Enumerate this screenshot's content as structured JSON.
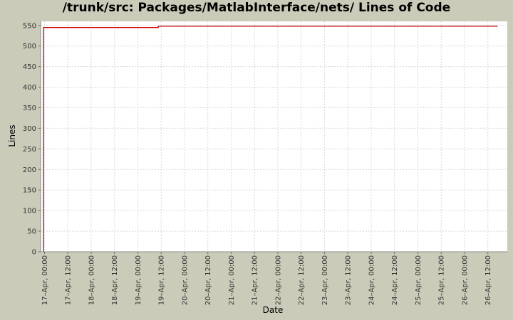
{
  "chart_data": {
    "type": "line",
    "title": "/trunk/src: Packages/MatlabInterface/nets/ Lines of Code",
    "xlabel": "Date",
    "ylabel": "Lines",
    "ylim": [
      0,
      560
    ],
    "yticks": [
      0,
      50,
      100,
      150,
      200,
      250,
      300,
      350,
      400,
      450,
      500,
      550
    ],
    "xlim_hours": [
      -4,
      476
    ],
    "xticks": [
      {
        "h": 0,
        "label": "17–Apr, 00:00"
      },
      {
        "h": 24,
        "label": "17–Apr, 12:00"
      },
      {
        "h": 48,
        "label": "18–Apr, 00:00"
      },
      {
        "h": 72,
        "label": "18–Apr, 12:00"
      },
      {
        "h": 96,
        "label": "19–Apr, 00:00"
      },
      {
        "h": 120,
        "label": "19–Apr, 12:00"
      },
      {
        "h": 144,
        "label": "20–Apr, 00:00"
      },
      {
        "h": 168,
        "label": "20–Apr, 12:00"
      },
      {
        "h": 192,
        "label": "21–Apr, 00:00"
      },
      {
        "h": 216,
        "label": "21–Apr, 12:00"
      },
      {
        "h": 240,
        "label": "22–Apr, 00:00"
      },
      {
        "h": 264,
        "label": "22–Apr, 12:00"
      },
      {
        "h": 288,
        "label": "23–Apr, 00:00"
      },
      {
        "h": 312,
        "label": "23–Apr, 12:00"
      },
      {
        "h": 336,
        "label": "24–Apr, 00:00"
      },
      {
        "h": 360,
        "label": "24–Apr, 12:00"
      },
      {
        "h": 384,
        "label": "25–Apr, 00:00"
      },
      {
        "h": 408,
        "label": "25–Apr, 12:00"
      },
      {
        "h": 432,
        "label": "26–Apr, 00:00"
      },
      {
        "h": 456,
        "label": "26–Apr, 12:00"
      }
    ],
    "series": [
      {
        "color": "#cc0000",
        "step": true,
        "points": [
          {
            "h": -1,
            "y": 0
          },
          {
            "h": -1,
            "y": 545
          },
          {
            "h": 117,
            "y": 545
          },
          {
            "h": 117,
            "y": 548
          },
          {
            "h": 466,
            "y": 548
          }
        ]
      }
    ],
    "grid": true,
    "colors": {
      "background": "#cbcbb9",
      "plot": "#ffffff",
      "grid": "#d8d8d8",
      "line": "#cc0000"
    }
  }
}
